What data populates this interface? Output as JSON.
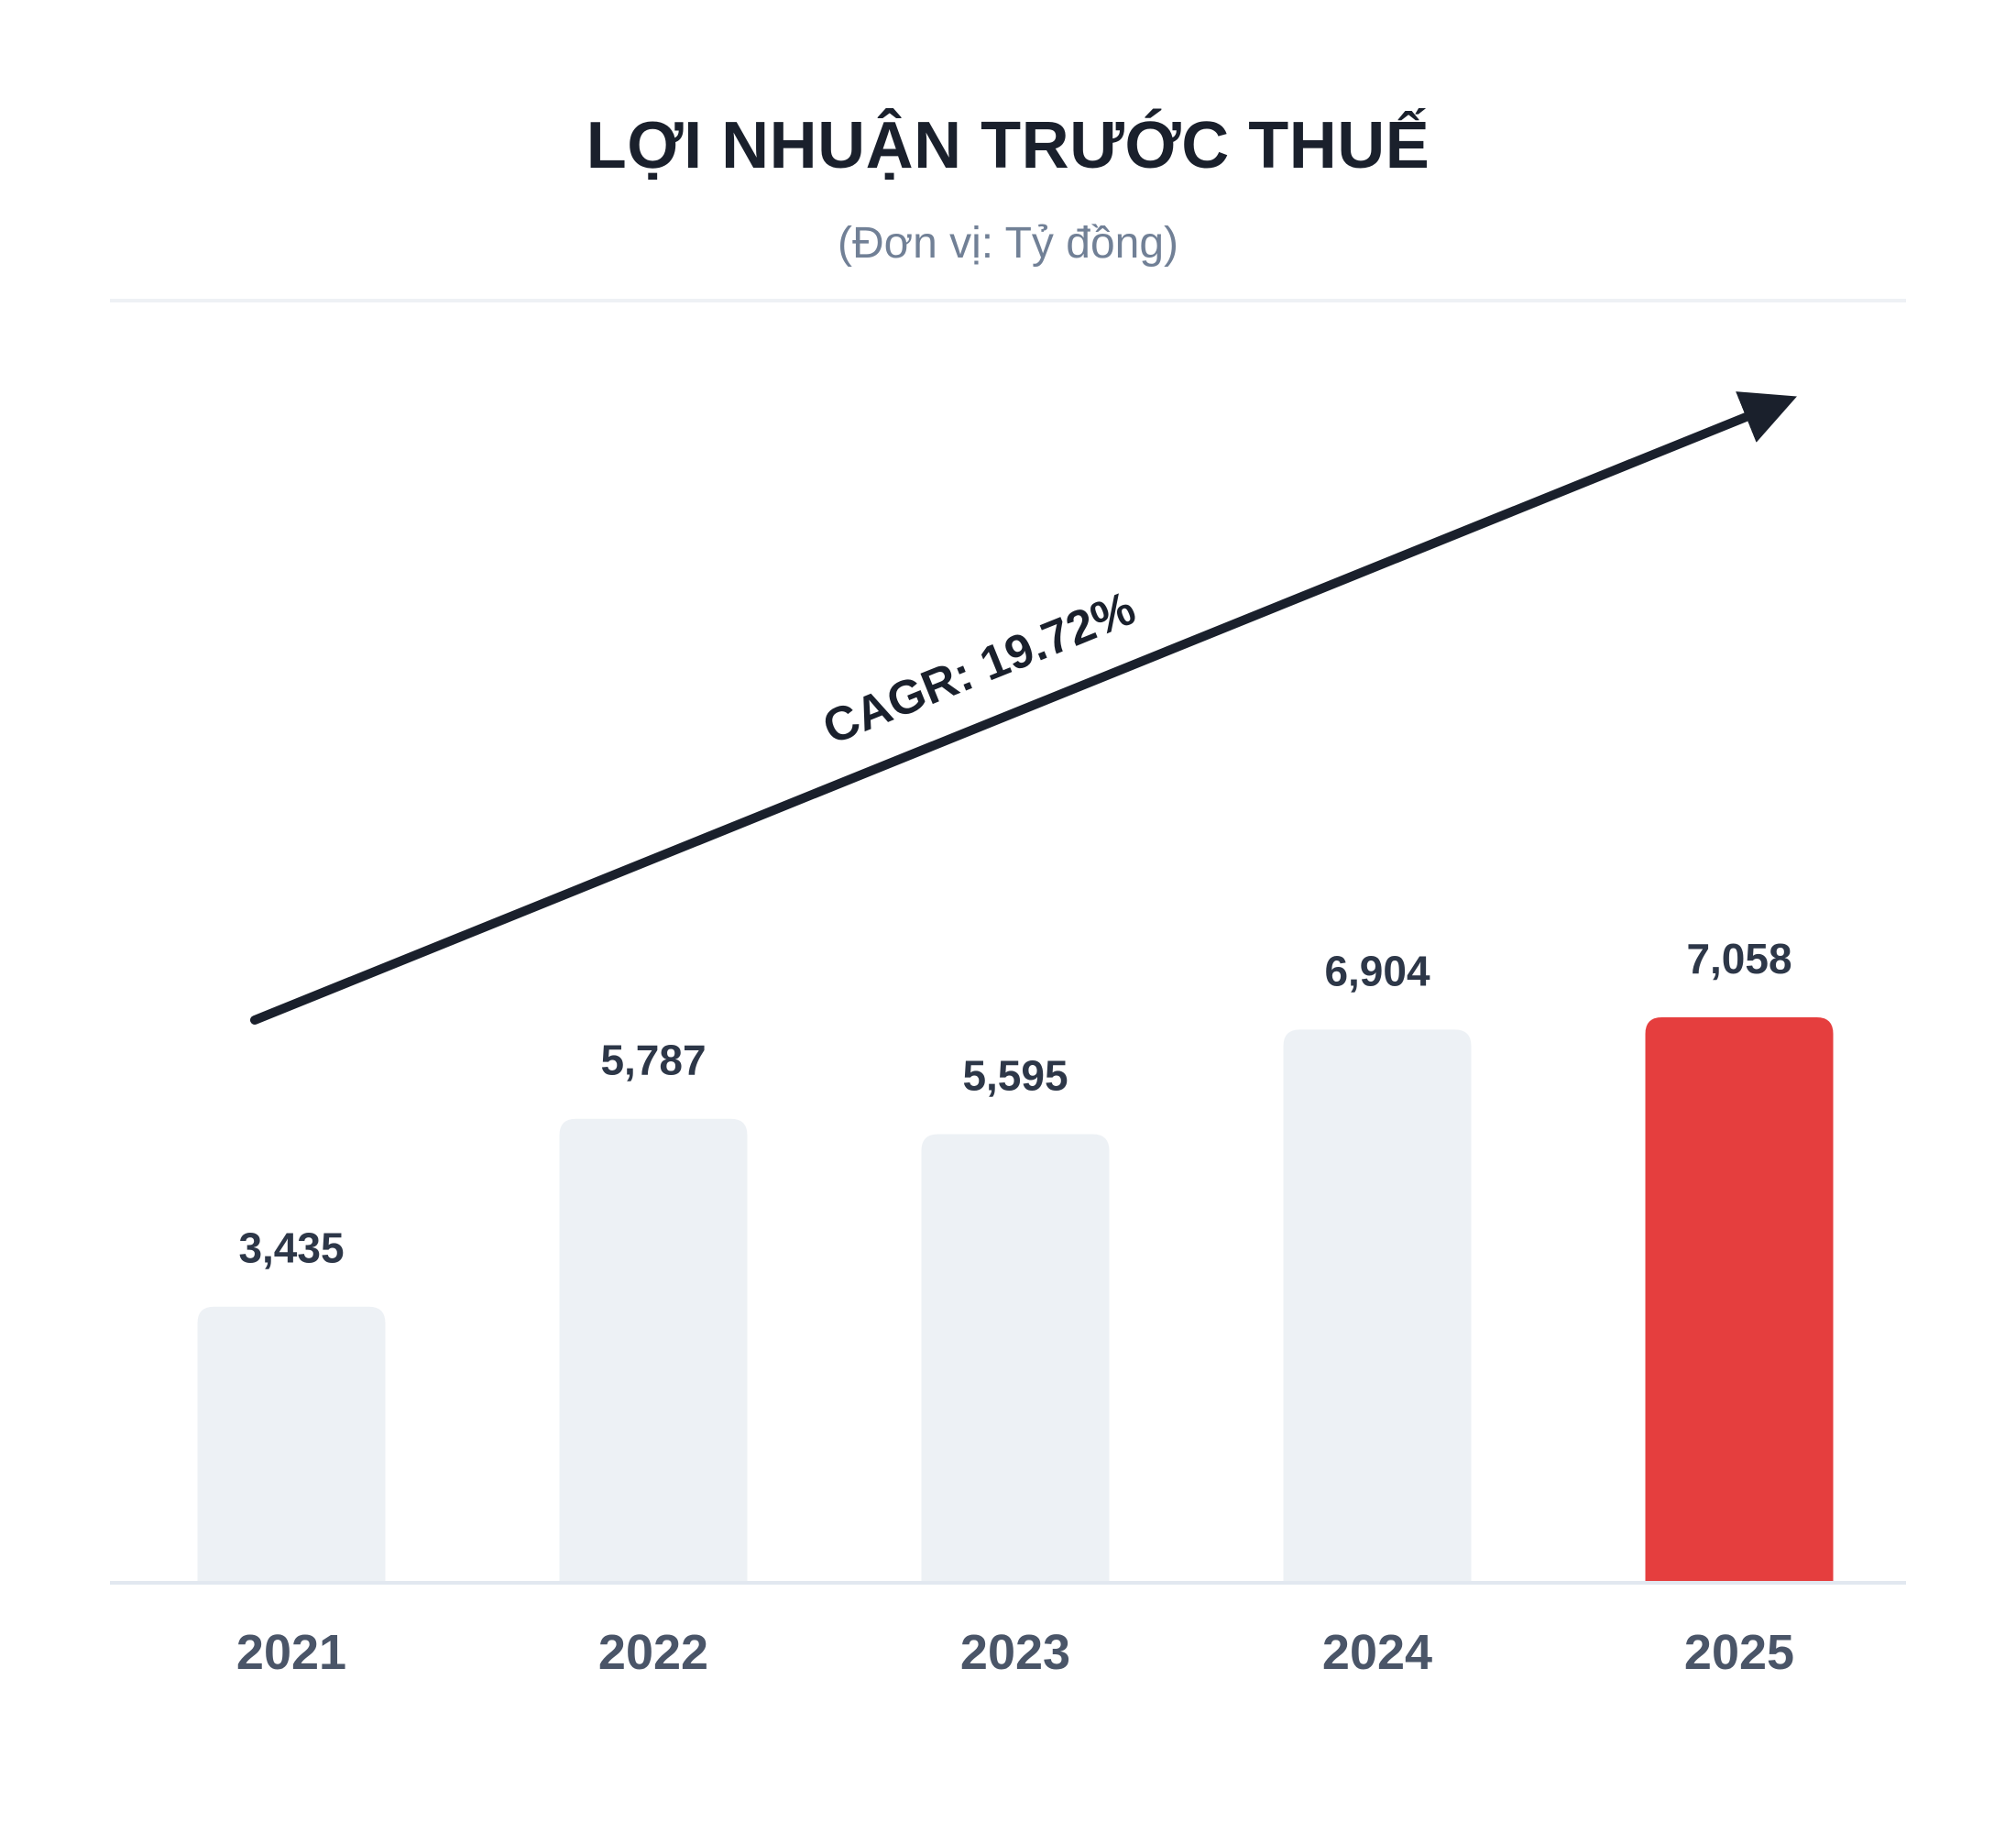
{
  "chart_data": {
    "type": "bar",
    "title": "LỢI NHUẬN TRƯỚC THUẾ",
    "subtitle": "(Đơn vị: Tỷ đồng)",
    "xlabel": "",
    "ylabel": "",
    "categories": [
      "2021",
      "2022",
      "2023",
      "2024",
      "2025"
    ],
    "values": [
      3435,
      5787,
      5595,
      6904,
      7058
    ],
    "value_labels": [
      "3,435",
      "5,787",
      "5,595",
      "6,904",
      "7,058"
    ],
    "ylim": [
      0,
      7300
    ],
    "grid": false,
    "legend": "none",
    "highlight_index": 4,
    "annotation": "CAGR: 19.72%",
    "colors": {
      "bar": "#edf1f5",
      "highlight": "#e53e3e",
      "value_text": "#2d3748",
      "axis_text": "#4a5568",
      "arrow": "#1a202c",
      "baseline": "#e2e8f0"
    }
  }
}
